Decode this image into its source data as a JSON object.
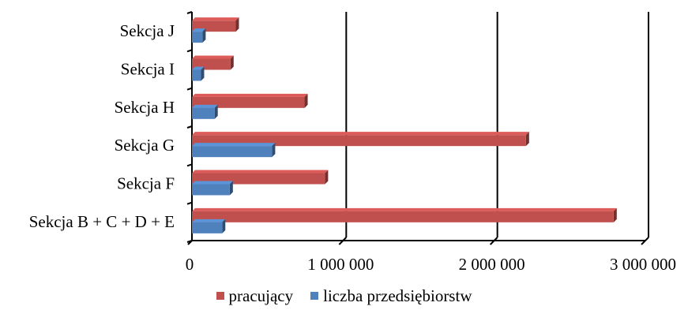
{
  "chart_data": {
    "type": "bar",
    "orientation": "horizontal",
    "style": "3d",
    "categories": [
      "Sekcja J",
      "Sekcja I",
      "Sekcja H",
      "Sekcja G",
      "Sekcja F",
      "Sekcja B + C + D + E"
    ],
    "series": [
      {
        "name": "pracujący",
        "color": "#C0504D",
        "values": [
          290000,
          255000,
          745000,
          2210000,
          880000,
          2790000
        ]
      },
      {
        "name": "liczba przedsiębiorstw",
        "color": "#4F81BD",
        "values": [
          70000,
          60000,
          150000,
          530000,
          250000,
          200000
        ]
      }
    ],
    "xlim": [
      0,
      3000000
    ],
    "xticks": [
      0,
      1000000,
      2000000,
      3000000
    ],
    "xtick_labels": [
      "0",
      "1 000 000",
      "2 000 000",
      "3 000 000"
    ],
    "grid": true,
    "legend_position": "bottom"
  }
}
